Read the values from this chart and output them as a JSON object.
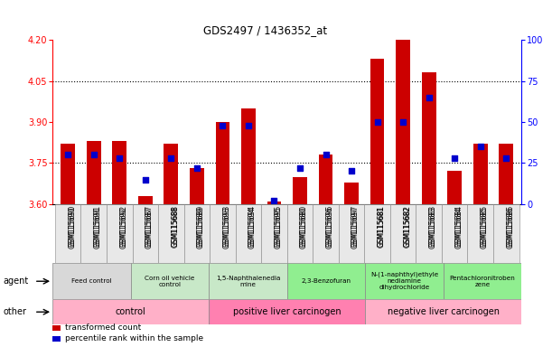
{
  "title": "GDS2497 / 1436352_at",
  "samples": [
    "GSM115690",
    "GSM115691",
    "GSM115692",
    "GSM115687",
    "GSM115688",
    "GSM115689",
    "GSM115693",
    "GSM115694",
    "GSM115695",
    "GSM115680",
    "GSM115696",
    "GSM115697",
    "GSM115681",
    "GSM115682",
    "GSM115683",
    "GSM115684",
    "GSM115685",
    "GSM115686"
  ],
  "transformed_count": [
    3.82,
    3.83,
    3.83,
    3.63,
    3.82,
    3.73,
    3.9,
    3.95,
    3.61,
    3.7,
    3.78,
    3.68,
    4.13,
    4.2,
    4.08,
    3.72,
    3.82,
    3.82
  ],
  "percentile_rank": [
    30,
    30,
    28,
    15,
    28,
    22,
    48,
    48,
    2,
    22,
    30,
    20,
    50,
    50,
    65,
    28,
    35,
    28
  ],
  "ylim_left": [
    3.6,
    4.2
  ],
  "ylim_right": [
    0,
    100
  ],
  "yticks_left": [
    3.6,
    3.75,
    3.9,
    4.05,
    4.2
  ],
  "yticks_right": [
    0,
    25,
    50,
    75,
    100
  ],
  "hlines": [
    3.75,
    4.05
  ],
  "bar_color": "#cc0000",
  "dot_color": "#0000cc",
  "bar_bottom": 3.6,
  "agent_groups": [
    {
      "label": "Feed control",
      "start": 0,
      "end": 3,
      "color": "#d8d8d8"
    },
    {
      "label": "Corn oil vehicle\ncontrol",
      "start": 3,
      "end": 6,
      "color": "#c8e8c8"
    },
    {
      "label": "1,5-Naphthalenedia\nmine",
      "start": 6,
      "end": 9,
      "color": "#c8e8c8"
    },
    {
      "label": "2,3-Benzofuran",
      "start": 9,
      "end": 12,
      "color": "#90ee90"
    },
    {
      "label": "N-(1-naphthyl)ethyle\nnediamine\ndihydrochloride",
      "start": 12,
      "end": 15,
      "color": "#90ee90"
    },
    {
      "label": "Pentachloronitroben\nzene",
      "start": 15,
      "end": 18,
      "color": "#90ee90"
    }
  ],
  "other_groups": [
    {
      "label": "control",
      "start": 0,
      "end": 6,
      "color": "#ffb0c8"
    },
    {
      "label": "positive liver carcinogen",
      "start": 6,
      "end": 12,
      "color": "#ff80b0"
    },
    {
      "label": "negative liver carcinogen",
      "start": 12,
      "end": 18,
      "color": "#ffb0c8"
    }
  ],
  "legend_items": [
    {
      "label": "transformed count",
      "color": "#cc0000"
    },
    {
      "label": "percentile rank within the sample",
      "color": "#0000cc"
    }
  ],
  "fig_w": 6.11,
  "fig_h": 3.84,
  "dpi": 100
}
